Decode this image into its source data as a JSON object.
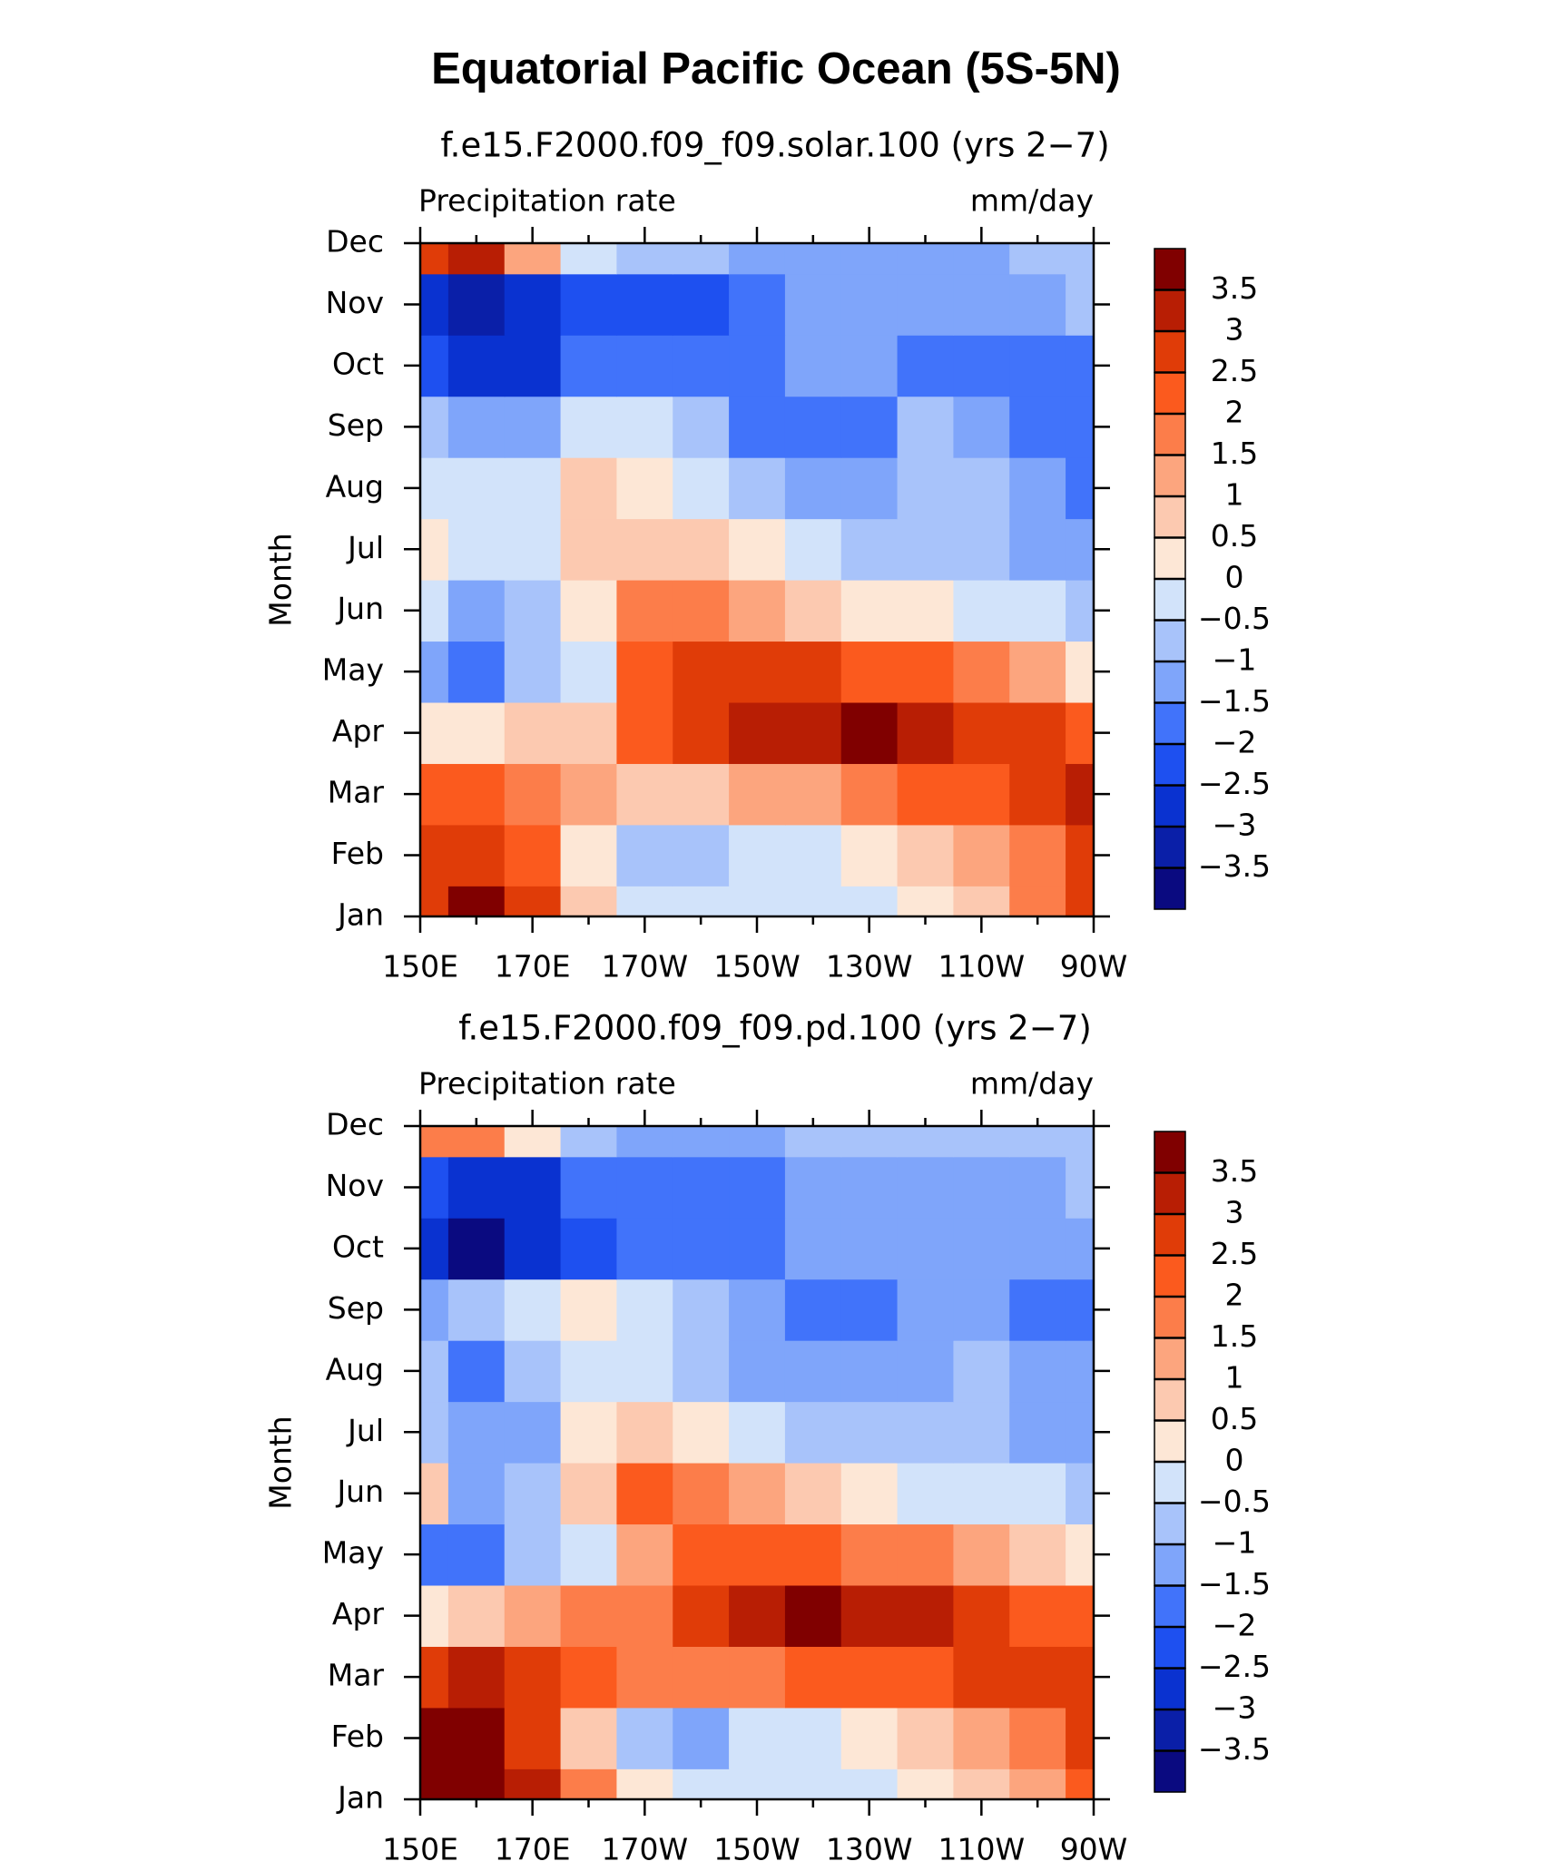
{
  "title": "Equatorial Pacific Ocean (5S-5N)",
  "chart_data": [
    {
      "type": "contour",
      "title": "f.e15.F2000.f09_f09.solar.100 (yrs 2−7)",
      "left_string": "Precipitation rate",
      "right_string": "mm/day",
      "ylabel": "Month",
      "y": [
        "Jan",
        "Feb",
        "Mar",
        "Apr",
        "May",
        "Jun",
        "Jul",
        "Aug",
        "Sep",
        "Oct",
        "Nov",
        "Dec"
      ],
      "x": [
        150,
        160,
        170,
        180,
        190,
        200,
        210,
        220,
        230,
        240,
        250,
        260,
        270
      ],
      "xlim": [
        150,
        270
      ],
      "xticks": [
        {
          "value": 150,
          "label": "150E"
        },
        {
          "value": 170,
          "label": "170E"
        },
        {
          "value": 190,
          "label": "170W"
        },
        {
          "value": 210,
          "label": "150W"
        },
        {
          "value": 230,
          "label": "130W"
        },
        {
          "value": 250,
          "label": "110W"
        },
        {
          "value": 270,
          "label": "90W"
        }
      ],
      "xminorticks": [
        160,
        180,
        200,
        220,
        240,
        260
      ],
      "z": [
        [
          2.5,
          3.5,
          2.5,
          0.5,
          -0.3,
          -0.3,
          -0.3,
          -0.3,
          -0.2,
          0.3,
          0.8,
          1.5,
          2.5
        ],
        [
          2.5,
          2.8,
          2.0,
          0.2,
          -0.6,
          -0.8,
          -0.3,
          -0.2,
          0,
          0.5,
          1.0,
          1.8,
          2.8
        ],
        [
          2.0,
          2.2,
          1.5,
          1.0,
          0.8,
          0.8,
          1.0,
          1.2,
          1.5,
          2.0,
          2.3,
          2.8,
          3.0
        ],
        [
          0.2,
          0.3,
          0.5,
          0.8,
          2.0,
          2.8,
          3.0,
          3.2,
          3.5,
          3.0,
          2.7,
          2.5,
          2.4
        ],
        [
          -1.2,
          -1.8,
          -1.0,
          -0.3,
          2.0,
          2.5,
          2.8,
          2.5,
          2.3,
          2.0,
          1.5,
          1.0,
          0.3
        ],
        [
          -0.5,
          -1.2,
          -0.8,
          0.2,
          1.5,
          1.5,
          1.0,
          0.8,
          0.3,
          0,
          -0.3,
          -0.5,
          -0.8
        ],
        [
          0.3,
          -0.3,
          -0.4,
          0.8,
          0.8,
          0.5,
          0,
          -0.5,
          -0.7,
          -0.9,
          -1.0,
          -1.2,
          -1.5
        ],
        [
          -0.3,
          -0.4,
          -0.3,
          0.6,
          0.2,
          -0.5,
          -1.0,
          -1.2,
          -1.2,
          -1.0,
          -1.0,
          -1.5,
          -1.7
        ],
        [
          -0.8,
          -1.5,
          -1.2,
          -0.4,
          -0.4,
          -1.0,
          -1.6,
          -1.6,
          -1.6,
          -1.0,
          -1.2,
          -1.6,
          -1.7
        ],
        [
          -2.5,
          -2.8,
          -2.6,
          -2.0,
          -2.0,
          -2.0,
          -1.8,
          -1.5,
          -1.5,
          -1.6,
          -1.6,
          -1.6,
          -1.7
        ],
        [
          -3.0,
          -3.2,
          -3.0,
          -2.3,
          -2.4,
          -2.2,
          -1.6,
          -1.5,
          -1.5,
          -1.5,
          -1.5,
          -1.3,
          -1.0
        ],
        [
          2.5,
          3.0,
          1.0,
          -0.3,
          -0.8,
          -1.0,
          -1.4,
          -1.4,
          -1.4,
          -1.4,
          -1.2,
          -1.0,
          -0.8
        ]
      ],
      "levels": [
        {
          "value": -3.5,
          "label": "−3.5"
        },
        {
          "value": -3,
          "label": "−3"
        },
        {
          "value": -2.5,
          "label": "−2.5"
        },
        {
          "value": -2,
          "label": "−2"
        },
        {
          "value": -1.5,
          "label": "−1.5"
        },
        {
          "value": -1,
          "label": "−1"
        },
        {
          "value": -0.5,
          "label": "−0.5"
        },
        0,
        0.5,
        1,
        1.5,
        2,
        2.5,
        3,
        3.5
      ],
      "colors": [
        "#0a0a80",
        "#0a1fa8",
        "#0a32d0",
        "#1e50f0",
        "#4173fa",
        "#7fa5fa",
        "#a8c3fa",
        "#d2e3fa",
        "#fde7d6",
        "#fcc9b0",
        "#fca57e",
        "#fc7d4a",
        "#fb5a1e",
        "#e03c08",
        "#b81e04",
        "#800000"
      ]
    },
    {
      "type": "contour",
      "title": "f.e15.F2000.f09_f09.pd.100 (yrs 2−7)",
      "left_string": "Precipitation rate",
      "right_string": "mm/day",
      "ylabel": "Month",
      "y": [
        "Jan",
        "Feb",
        "Mar",
        "Apr",
        "May",
        "Jun",
        "Jul",
        "Aug",
        "Sep",
        "Oct",
        "Nov",
        "Dec"
      ],
      "x": [
        150,
        160,
        170,
        180,
        190,
        200,
        210,
        220,
        230,
        240,
        250,
        260,
        270
      ],
      "xlim": [
        150,
        270
      ],
      "xticks": [
        {
          "value": 150,
          "label": "150E"
        },
        {
          "value": 170,
          "label": "170E"
        },
        {
          "value": 190,
          "label": "170W"
        },
        {
          "value": 210,
          "label": "150W"
        },
        {
          "value": 230,
          "label": "130W"
        },
        {
          "value": 250,
          "label": "110W"
        },
        {
          "value": 270,
          "label": "90W"
        }
      ],
      "xminorticks": [
        160,
        180,
        200,
        220,
        240,
        260
      ],
      "z": [
        [
          3.5,
          3.8,
          3.0,
          1.5,
          0.3,
          -0.3,
          -0.4,
          -0.3,
          -0.2,
          0,
          0.5,
          1.2,
          2.0
        ],
        [
          3.5,
          3.5,
          2.5,
          0.8,
          -0.8,
          -1.2,
          -0.5,
          -0.3,
          0,
          0.5,
          1.0,
          1.8,
          2.5
        ],
        [
          2.8,
          3.3,
          2.8,
          2.3,
          1.8,
          1.8,
          1.8,
          2.0,
          2.2,
          2.4,
          2.6,
          2.8,
          2.5
        ],
        [
          0.4,
          0.8,
          1.0,
          1.5,
          1.8,
          2.8,
          3.3,
          3.6,
          3.3,
          3.0,
          2.7,
          2.4,
          2.0
        ],
        [
          -2.0,
          -1.8,
          -0.8,
          -0.3,
          1.2,
          2.0,
          2.2,
          2.0,
          1.8,
          1.5,
          1.0,
          0.5,
          0.2
        ],
        [
          0.5,
          -1.2,
          -1.0,
          0.6,
          2.0,
          1.5,
          1.0,
          0.6,
          0.2,
          -0.2,
          -0.4,
          -0.5,
          -0.6
        ],
        [
          -1.0,
          -1.5,
          -1.3,
          0.2,
          0.5,
          0.3,
          -0.3,
          -0.6,
          -0.7,
          -0.8,
          -0.9,
          -1.2,
          -1.3
        ],
        [
          -1.0,
          -2.0,
          -1.0,
          -0.3,
          -0.5,
          -0.6,
          -1.2,
          -1.5,
          -1.5,
          -1.2,
          -1.0,
          -1.4,
          -1.5
        ],
        [
          -1.3,
          -0.8,
          -0.5,
          0.3,
          -0.3,
          -1.0,
          -1.3,
          -1.6,
          -1.6,
          -1.3,
          -1.2,
          -1.6,
          -1.6
        ],
        [
          -3.0,
          -3.6,
          -3.0,
          -2.2,
          -1.8,
          -1.8,
          -1.6,
          -1.5,
          -1.5,
          -1.5,
          -1.5,
          -1.5,
          -1.5
        ],
        [
          -2.5,
          -3.0,
          -2.6,
          -2.0,
          -1.8,
          -1.6,
          -1.6,
          -1.4,
          -1.3,
          -1.3,
          -1.2,
          -1.1,
          -1.0
        ],
        [
          1.5,
          1.8,
          0.3,
          -1.0,
          -1.5,
          -1.5,
          -1.2,
          -1.0,
          -0.9,
          -0.9,
          -0.9,
          -0.8,
          -0.7
        ]
      ],
      "levels": [
        {
          "value": -3.5,
          "label": "−3.5"
        },
        {
          "value": -3,
          "label": "−3"
        },
        {
          "value": -2.5,
          "label": "−2.5"
        },
        {
          "value": -2,
          "label": "−2"
        },
        {
          "value": -1.5,
          "label": "−1.5"
        },
        {
          "value": -1,
          "label": "−1"
        },
        {
          "value": -0.5,
          "label": "−0.5"
        },
        0,
        0.5,
        1,
        1.5,
        2,
        2.5,
        3,
        3.5
      ],
      "colors": [
        "#0a0a80",
        "#0a1fa8",
        "#0a32d0",
        "#1e50f0",
        "#4173fa",
        "#7fa5fa",
        "#a8c3fa",
        "#d2e3fa",
        "#fde7d6",
        "#fcc9b0",
        "#fca57e",
        "#fc7d4a",
        "#fb5a1e",
        "#e03c08",
        "#b81e04",
        "#800000"
      ]
    }
  ]
}
